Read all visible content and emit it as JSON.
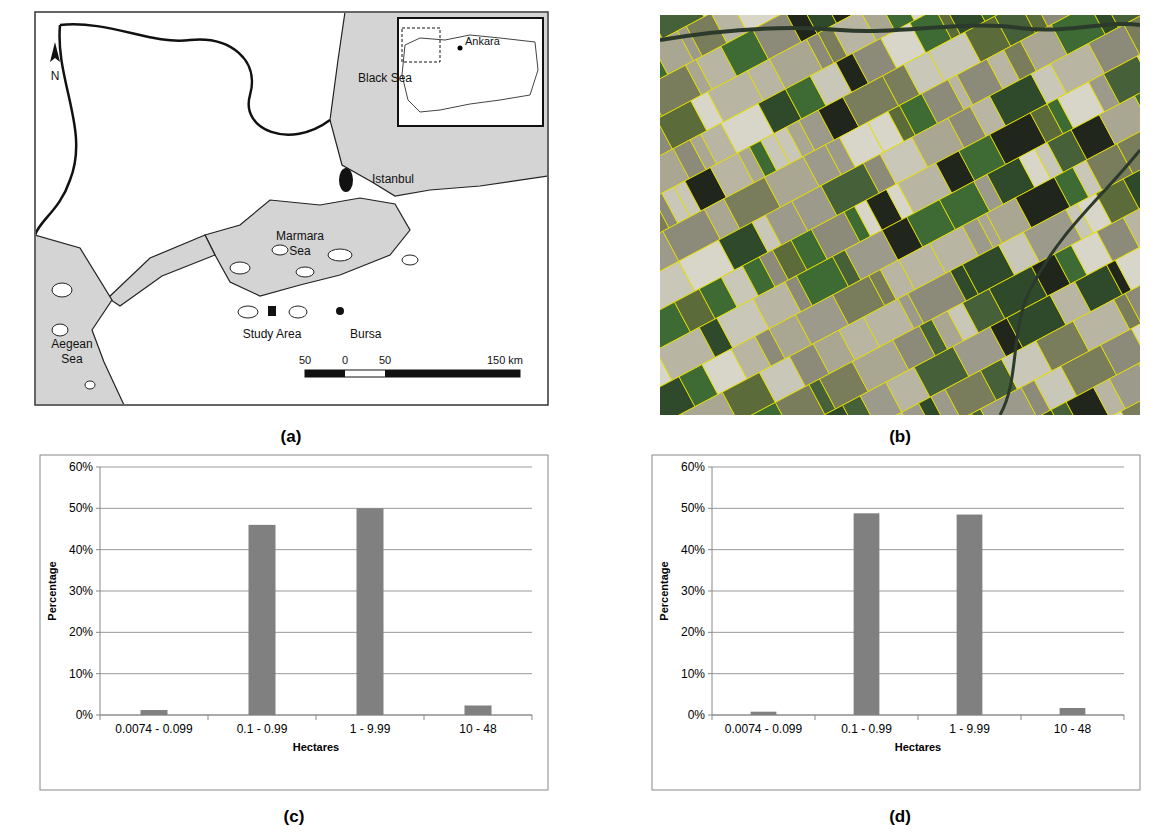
{
  "panel_labels": [
    "(a)",
    "(b)",
    "(c)",
    "(d)"
  ],
  "map": {
    "north": "N",
    "labels": [
      "Black Sea",
      "Ankara",
      "Istanbul",
      "Marmara Sea",
      "Aegean Sea",
      "Study Area",
      "Bursa"
    ],
    "scale_labels": [
      "50",
      "0",
      "50",
      "150 km"
    ]
  },
  "chart_data": [
    {
      "type": "bar",
      "x_label": "Hectares",
      "y_label": "Percentage",
      "categories": [
        "0.0074 - 0.099",
        "0.1 - 0.99",
        "1 - 9.99",
        "10 - 48"
      ],
      "values": [
        1.2,
        46,
        50,
        2.3
      ],
      "color": "#808080",
      "ylim": [
        0,
        60
      ],
      "yticks": [
        {
          "value": 0,
          "label": "0%"
        },
        {
          "value": 10,
          "label": "10%"
        },
        {
          "value": 20,
          "label": "20%"
        },
        {
          "value": 30,
          "label": "30%"
        },
        {
          "value": 40,
          "label": "40%"
        },
        {
          "value": 50,
          "label": "50%"
        },
        {
          "value": 60,
          "label": "60%"
        }
      ],
      "grid": true
    },
    {
      "type": "bar",
      "x_label": "Hectares",
      "y_label": "Percentage",
      "categories": [
        "0.0074 - 0.099",
        "0.1 - 0.99",
        "1 - 9.99",
        "10 - 48"
      ],
      "values": [
        0.8,
        48.8,
        48.5,
        1.7
      ],
      "color": "#808080",
      "ylim": [
        0,
        60
      ],
      "yticks": [
        {
          "value": 0,
          "label": "0%"
        },
        {
          "value": 10,
          "label": "10%"
        },
        {
          "value": 20,
          "label": "20%"
        },
        {
          "value": 30,
          "label": "30%"
        },
        {
          "value": 40,
          "label": "40%"
        },
        {
          "value": 50,
          "label": "50%"
        },
        {
          "value": 60,
          "label": "60%"
        }
      ],
      "grid": true
    }
  ]
}
